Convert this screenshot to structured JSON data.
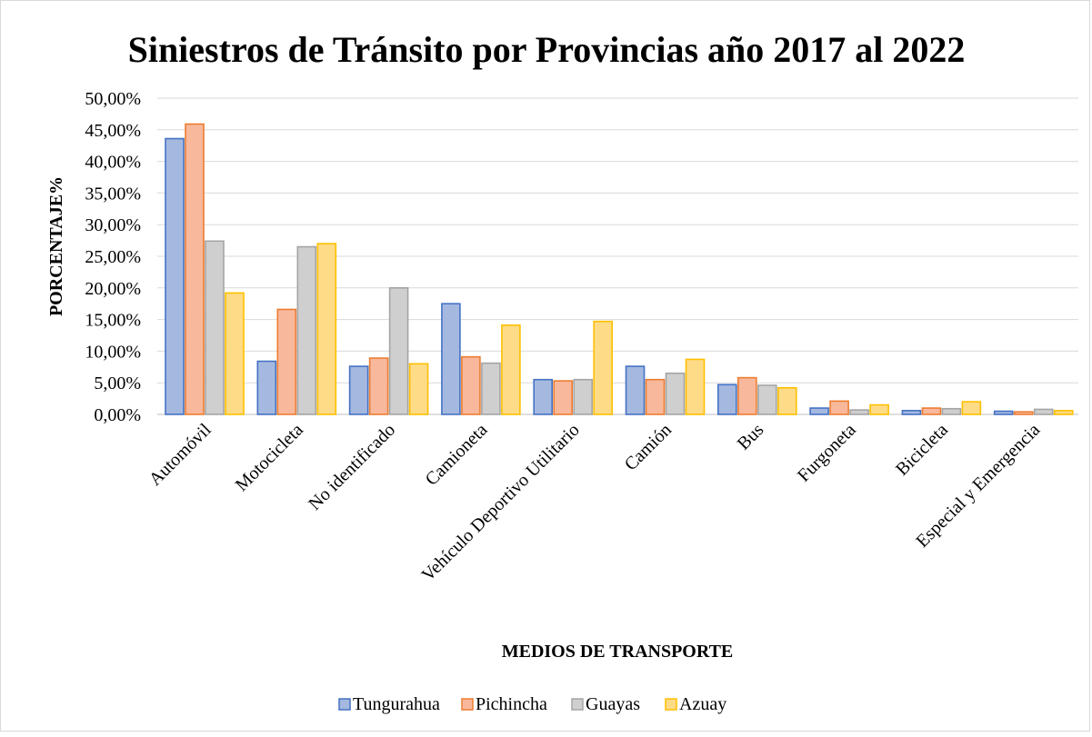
{
  "chart_data": {
    "type": "bar",
    "title": "Siniestros de Tránsito por Provincias año 2017 al 2022",
    "xlabel": "MEDIOS DE TRANSPORTE",
    "ylabel": "PORCENTAJE%",
    "ylim": [
      0,
      50
    ],
    "yticks": [
      "0,00%",
      "5,00%",
      "10,00%",
      "15,00%",
      "20,00%",
      "25,00%",
      "30,00%",
      "35,00%",
      "40,00%",
      "45,00%",
      "50,00%"
    ],
    "grid": true,
    "legend_position": "bottom",
    "categories": [
      "Automóvil",
      "Motocicleta",
      "No identificado",
      "Camioneta",
      "Vehículo Deportivo Utilitario",
      "Camión",
      "Bus",
      "Furgoneta",
      "Bicicleta",
      "Especial y Emergencia"
    ],
    "series": [
      {
        "name": "Tungurahua",
        "fill": "#a5b9e0",
        "stroke": "#4472c4",
        "values": [
          43.6,
          8.4,
          7.6,
          17.5,
          5.5,
          7.6,
          4.7,
          1.0,
          0.6,
          0.5
        ]
      },
      {
        "name": "Pichincha",
        "fill": "#f8b89c",
        "stroke": "#ed7d31",
        "values": [
          45.9,
          16.6,
          8.9,
          9.1,
          5.3,
          5.5,
          5.8,
          2.1,
          1.0,
          0.4
        ]
      },
      {
        "name": "Guayas",
        "fill": "#cfcfcf",
        "stroke": "#a5a5a5",
        "values": [
          27.4,
          26.5,
          20.0,
          8.1,
          5.5,
          6.5,
          4.6,
          0.7,
          0.9,
          0.8
        ]
      },
      {
        "name": "Azuay",
        "fill": "#fedb87",
        "stroke": "#ffc000",
        "values": [
          19.2,
          27.0,
          8.0,
          14.1,
          14.7,
          8.7,
          4.2,
          1.5,
          2.0,
          0.6
        ]
      }
    ]
  }
}
